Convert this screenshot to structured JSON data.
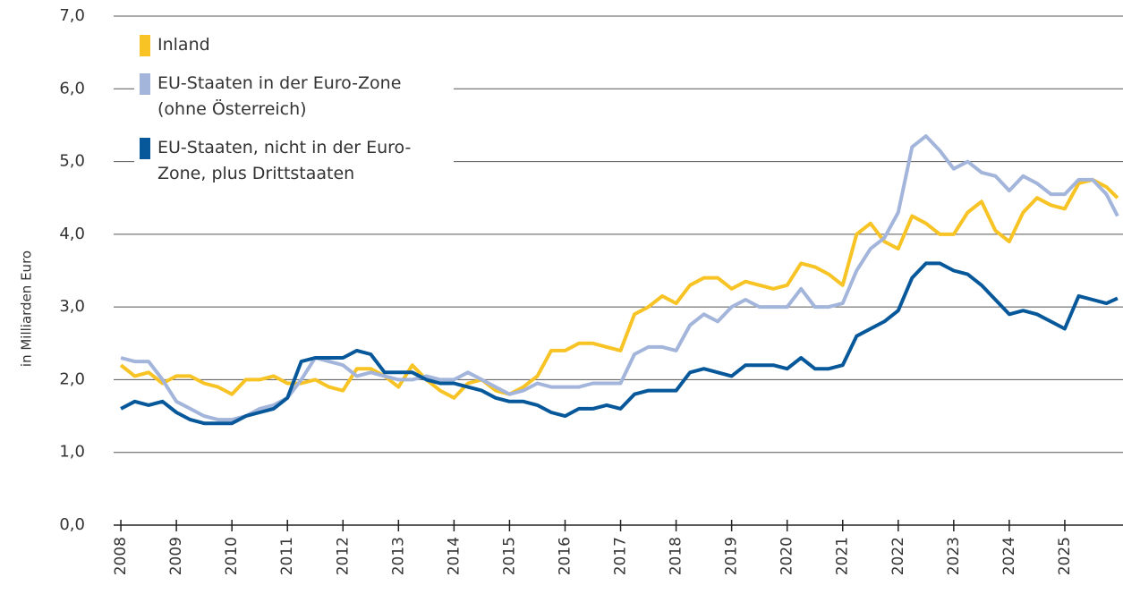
{
  "chart_data": {
    "type": "line",
    "y_label": "in Milliarden Euro",
    "x": [
      2008.0,
      2008.25,
      2008.5,
      2008.75,
      2009.0,
      2009.25,
      2009.5,
      2009.75,
      2010.0,
      2010.25,
      2010.5,
      2010.75,
      2011.0,
      2011.25,
      2011.5,
      2011.75,
      2012.0,
      2012.25,
      2012.5,
      2012.75,
      2013.0,
      2013.25,
      2013.5,
      2013.75,
      2014.0,
      2014.25,
      2014.5,
      2014.75,
      2015.0,
      2015.25,
      2015.5,
      2015.75,
      2016.0,
      2016.25,
      2016.5,
      2016.75,
      2017.0,
      2017.25,
      2017.5,
      2017.75,
      2018.0,
      2018.25,
      2018.5,
      2018.75,
      2019.0,
      2019.25,
      2019.5,
      2019.75,
      2020.0,
      2020.25,
      2020.5,
      2020.75,
      2021.0,
      2021.25,
      2021.5,
      2021.75,
      2022.0,
      2022.25,
      2022.5,
      2022.75,
      2023.0,
      2023.25,
      2023.5,
      2023.75,
      2024.0,
      2024.25,
      2024.5,
      2024.75,
      2025.0,
      2025.25,
      2025.5,
      2025.75,
      2025.95
    ],
    "series": [
      {
        "name": "Inland",
        "color": "#f7c325",
        "values": [
          2.2,
          2.05,
          2.1,
          1.95,
          2.05,
          2.05,
          1.95,
          1.9,
          1.8,
          2.0,
          2.0,
          2.05,
          1.95,
          1.95,
          2.0,
          1.9,
          1.85,
          2.15,
          2.15,
          2.05,
          1.9,
          2.2,
          2.0,
          1.85,
          1.75,
          1.95,
          2.0,
          1.85,
          1.8,
          1.9,
          2.05,
          2.4,
          2.4,
          2.5,
          2.5,
          2.45,
          2.4,
          2.9,
          3.0,
          3.15,
          3.05,
          3.3,
          3.4,
          3.4,
          3.25,
          3.35,
          3.3,
          3.25,
          3.3,
          3.6,
          3.55,
          3.45,
          3.3,
          4.0,
          4.15,
          3.9,
          3.8,
          4.25,
          4.15,
          4.0,
          4.0,
          4.3,
          4.45,
          4.05,
          3.9,
          4.3,
          4.5,
          4.4,
          4.35,
          4.7,
          4.75,
          4.65,
          4.5
        ]
      },
      {
        "name": "EU-Staaten in der Euro-Zone (ohne Österreich)",
        "color": "#a3b5da",
        "values": [
          2.3,
          2.25,
          2.25,
          2.0,
          1.7,
          1.6,
          1.5,
          1.45,
          1.45,
          1.5,
          1.6,
          1.65,
          1.75,
          2.0,
          2.3,
          2.25,
          2.2,
          2.05,
          2.1,
          2.05,
          2.0,
          2.0,
          2.05,
          2.0,
          2.0,
          2.1,
          2.0,
          1.9,
          1.8,
          1.85,
          1.95,
          1.9,
          1.9,
          1.9,
          1.95,
          1.95,
          1.95,
          2.35,
          2.45,
          2.45,
          2.4,
          2.75,
          2.9,
          2.8,
          3.0,
          3.1,
          3.0,
          3.0,
          3.0,
          3.25,
          3.0,
          3.0,
          3.05,
          3.5,
          3.8,
          3.95,
          4.3,
          5.2,
          5.35,
          5.15,
          4.9,
          5.0,
          4.85,
          4.8,
          4.6,
          4.8,
          4.7,
          4.55,
          4.55,
          4.75,
          4.75,
          4.55,
          4.25
        ]
      },
      {
        "name": "EU-Staaten, nicht in der Euro-Zone, plus Drittstaaten",
        "color": "#07589a",
        "values": [
          1.6,
          1.7,
          1.65,
          1.7,
          1.55,
          1.45,
          1.4,
          1.4,
          1.4,
          1.5,
          1.55,
          1.6,
          1.75,
          2.25,
          2.3,
          2.3,
          2.3,
          2.4,
          2.35,
          2.1,
          2.1,
          2.1,
          2.0,
          1.95,
          1.95,
          1.9,
          1.85,
          1.75,
          1.7,
          1.7,
          1.65,
          1.55,
          1.5,
          1.6,
          1.6,
          1.65,
          1.6,
          1.8,
          1.85,
          1.85,
          1.85,
          2.1,
          2.15,
          2.1,
          2.05,
          2.2,
          2.2,
          2.2,
          2.15,
          2.3,
          2.15,
          2.15,
          2.2,
          2.6,
          2.7,
          2.8,
          2.95,
          3.4,
          3.6,
          3.6,
          3.5,
          3.45,
          3.3,
          3.1,
          2.9,
          2.95,
          2.9,
          2.8,
          2.7,
          3.15,
          3.1,
          3.05,
          3.12
        ]
      }
    ],
    "xlim": [
      2007.87,
      2026.0
    ],
    "xticks": [
      2008,
      2009,
      2010,
      2011,
      2012,
      2013,
      2014,
      2015,
      2016,
      2017,
      2018,
      2019,
      2020,
      2021,
      2022,
      2023,
      2024,
      2025
    ],
    "ylim": [
      0,
      7
    ],
    "yticks": [
      {
        "value": 0,
        "label": "0,0"
      },
      {
        "value": 1,
        "label": "1,0"
      },
      {
        "value": 2,
        "label": "2,0"
      },
      {
        "value": 3,
        "label": "3,0"
      },
      {
        "value": 4,
        "label": "4,0"
      },
      {
        "value": 5,
        "label": "5,0"
      },
      {
        "value": 6,
        "label": "6,0"
      },
      {
        "value": 7,
        "label": "7,0"
      }
    ],
    "grid": true,
    "legend": "top-left"
  }
}
